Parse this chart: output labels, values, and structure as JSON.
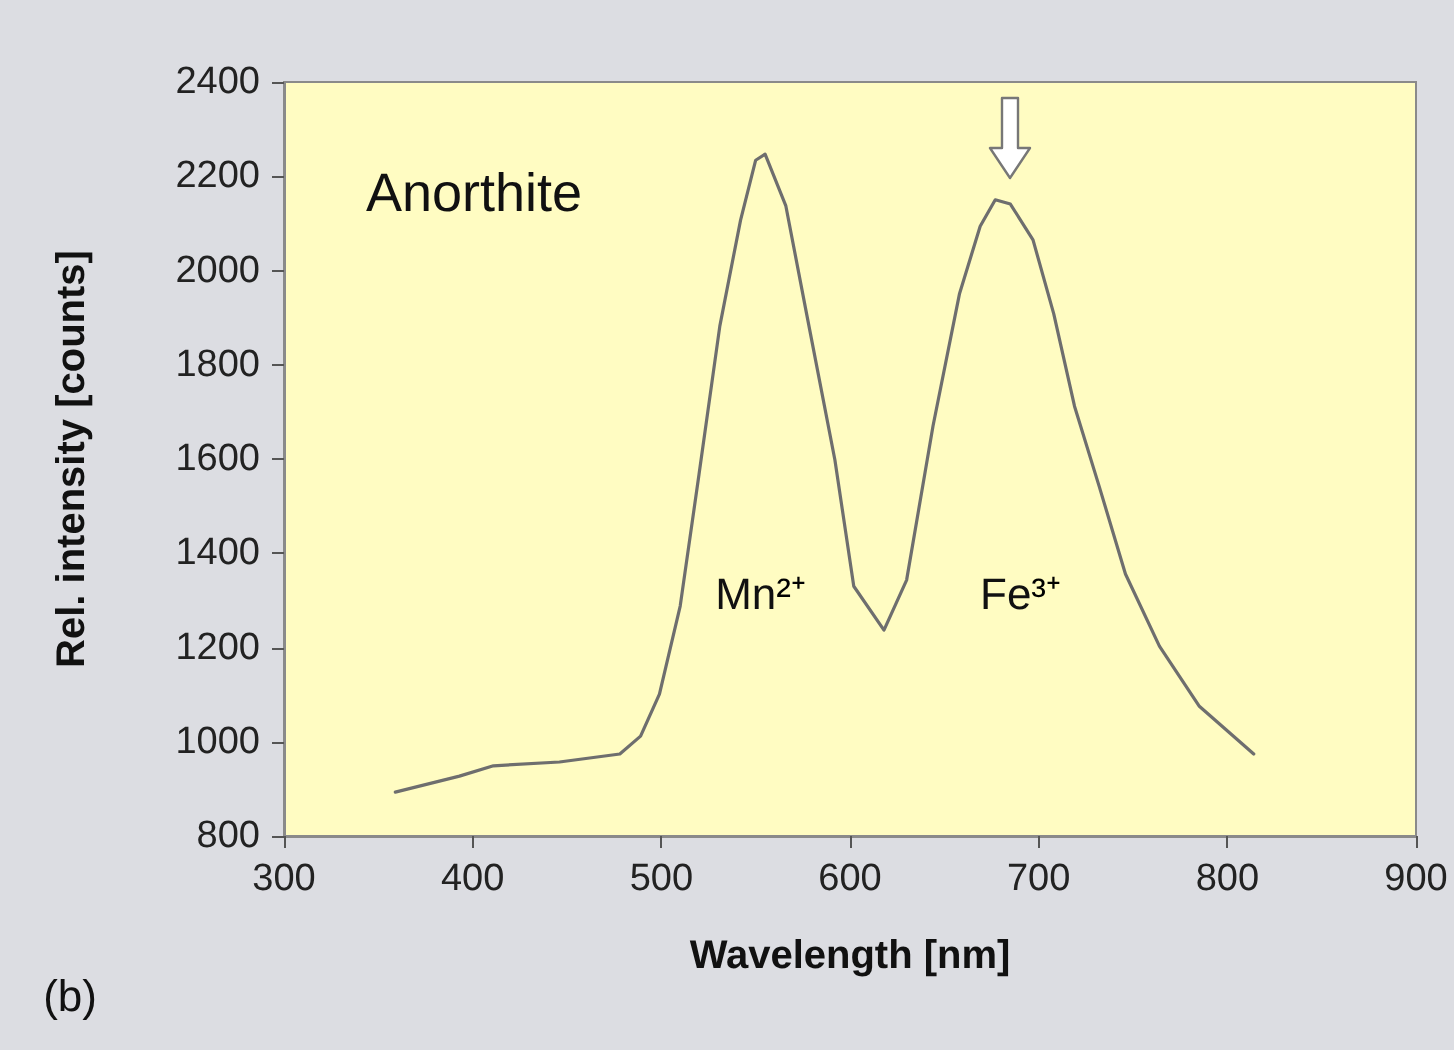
{
  "chart_data": {
    "type": "line",
    "title": "Anorthite",
    "xlabel": "Wavelength [nm]",
    "ylabel": "Rel. intensity [counts]",
    "annotations": [
      "(b)",
      "Mn²⁺",
      "Fe³⁺"
    ],
    "series": [
      {
        "color": "#6e6e6e",
        "x": [
          359,
          393,
          411,
          446,
          478,
          489,
          499,
          510,
          520,
          531,
          542,
          550,
          555,
          566,
          577,
          592,
          602,
          618,
          630,
          644,
          658,
          669,
          677,
          685,
          697,
          708,
          719,
          732,
          746,
          764,
          785,
          814
        ],
        "values": [
          893,
          927,
          949,
          957,
          974,
          1012,
          1101,
          1288,
          1568,
          1882,
          2107,
          2234,
          2247,
          2137,
          1908,
          1598,
          1330,
          1237,
          1343,
          1670,
          1950,
          2094,
          2150,
          2141,
          2065,
          1908,
          1712,
          1543,
          1356,
          1203,
          1076,
          974
        ]
      }
    ],
    "xlim": [
      300,
      900
    ],
    "xticks": [
      300,
      400,
      500,
      600,
      700,
      800,
      900
    ],
    "ylim": [
      800,
      2400
    ],
    "yticks": [
      800,
      1000,
      1200,
      1400,
      1600,
      1800,
      2000,
      2200,
      2400
    ],
    "grid": false,
    "marker": "none",
    "line_style": "solid"
  }
}
